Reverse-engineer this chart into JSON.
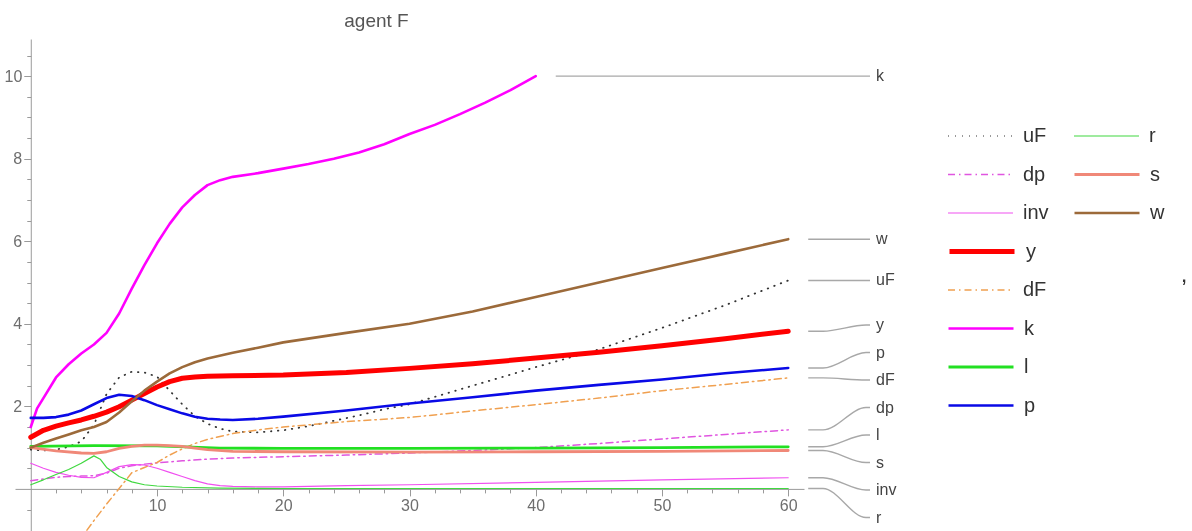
{
  "chart_data": {
    "type": "line",
    "title": "agent F",
    "xlim": [
      -1.25,
      61.25
    ],
    "ylim": [
      -1.02,
      10.9
    ],
    "xticks": [
      {
        "value": 2,
        "label": null
      },
      {
        "value": 4,
        "label": null
      },
      {
        "value": 6,
        "label": null
      },
      {
        "value": 8,
        "label": null
      },
      10,
      {
        "value": 12,
        "label": null
      },
      {
        "value": 14,
        "label": null
      },
      {
        "value": 16,
        "label": null
      },
      {
        "value": 18,
        "label": null
      },
      20,
      {
        "value": 22,
        "label": null
      },
      {
        "value": 24,
        "label": null
      },
      {
        "value": 26,
        "label": null
      },
      {
        "value": 28,
        "label": null
      },
      30,
      {
        "value": 32,
        "label": null
      },
      {
        "value": 34,
        "label": null
      },
      {
        "value": 36,
        "label": null
      },
      {
        "value": 38,
        "label": null
      },
      40,
      {
        "value": 42,
        "label": null
      },
      {
        "value": 44,
        "label": null
      },
      {
        "value": 46,
        "label": null
      },
      {
        "value": 48,
        "label": null
      },
      50,
      {
        "value": 52,
        "label": null
      },
      {
        "value": 54,
        "label": null
      },
      {
        "value": 56,
        "label": null
      },
      {
        "value": 58,
        "label": null
      },
      60
    ],
    "yticks": [
      {
        "value": -0.5,
        "label": null
      },
      {
        "value": 0.5,
        "label": null
      },
      {
        "value": 1,
        "label": null
      },
      {
        "value": 1.5,
        "label": null
      },
      2,
      {
        "value": 2.5,
        "label": null
      },
      {
        "value": 3,
        "label": null
      },
      {
        "value": 3.5,
        "label": null
      },
      4,
      {
        "value": 4.5,
        "label": null
      },
      {
        "value": 5,
        "label": null
      },
      {
        "value": 5.5,
        "label": null
      },
      6,
      {
        "value": 6.5,
        "label": null
      },
      {
        "value": 7,
        "label": null
      },
      {
        "value": 7.5,
        "label": null
      },
      8,
      {
        "value": 8.5,
        "label": null
      },
      {
        "value": 9,
        "label": null
      },
      {
        "value": 9.5,
        "label": null
      },
      10,
      {
        "value": 10.5,
        "label": null
      }
    ],
    "legend": "right",
    "annotations": [
      ","
    ],
    "series": [
      {
        "name": "uF",
        "color": "#333333",
        "line_style": "dotted",
        "x": [
          0,
          1,
          2,
          3,
          4,
          5,
          6,
          7,
          8,
          9,
          10,
          11,
          12,
          13,
          14,
          15,
          16,
          18,
          20,
          22,
          24,
          26,
          28,
          30,
          35,
          40,
          45,
          50,
          55,
          60
        ],
        "values": [
          0.95,
          0.93,
          0.95,
          1.02,
          1.15,
          1.55,
          2.3,
          2.7,
          2.84,
          2.82,
          2.72,
          2.38,
          2.05,
          1.76,
          1.58,
          1.46,
          1.39,
          1.37,
          1.42,
          1.52,
          1.65,
          1.78,
          1.93,
          2.05,
          2.5,
          2.95,
          3.38,
          3.9,
          4.45,
          5.05
        ]
      },
      {
        "name": "dp",
        "color": "#e055e0",
        "line_style": "dashed",
        "x": [
          0,
          1,
          2,
          3,
          4,
          5,
          6,
          7,
          8,
          9,
          10,
          12,
          14,
          16,
          20,
          25,
          30,
          35,
          40,
          45,
          50,
          55,
          60
        ],
        "values": [
          0.2,
          0.24,
          0.28,
          0.3,
          0.31,
          0.32,
          0.38,
          0.5,
          0.56,
          0.6,
          0.63,
          0.68,
          0.72,
          0.75,
          0.78,
          0.82,
          0.87,
          0.93,
          1.0,
          1.1,
          1.21,
          1.32,
          1.43
        ]
      },
      {
        "name": "inv",
        "color": "#f050f0",
        "line_style": "solid",
        "x": [
          0,
          1,
          2,
          3,
          4,
          5,
          6,
          7,
          8,
          9,
          10,
          11,
          12,
          13,
          14,
          15,
          16,
          18,
          20,
          25,
          30,
          40,
          50,
          60
        ],
        "values": [
          0.62,
          0.5,
          0.4,
          0.33,
          0.28,
          0.27,
          0.4,
          0.54,
          0.59,
          0.58,
          0.5,
          0.4,
          0.3,
          0.2,
          0.12,
          0.08,
          0.06,
          0.05,
          0.05,
          0.08,
          0.1,
          0.16,
          0.22,
          0.27
        ]
      },
      {
        "name": "y",
        "color": "#ff0000",
        "line_style": "solid",
        "x": [
          0,
          1,
          2,
          3,
          4,
          5,
          6,
          7,
          8,
          9,
          10,
          11,
          12,
          13,
          14,
          16,
          20,
          25,
          30,
          35,
          40,
          45,
          50,
          55,
          60
        ],
        "values": [
          1.25,
          1.42,
          1.52,
          1.6,
          1.67,
          1.76,
          1.86,
          1.99,
          2.15,
          2.31,
          2.47,
          2.6,
          2.68,
          2.71,
          2.73,
          2.74,
          2.76,
          2.82,
          2.92,
          3.03,
          3.17,
          3.31,
          3.47,
          3.64,
          3.82
        ]
      },
      {
        "name": "dF",
        "color": "#f0a050",
        "line_style": "dashed",
        "x": [
          4.45,
          5,
          6,
          7,
          8,
          9,
          10,
          11,
          12,
          13,
          14,
          16,
          18,
          20,
          25,
          30,
          35,
          40,
          45,
          50,
          55,
          60
        ],
        "values": [
          -1.0,
          -0.77,
          -0.37,
          0.01,
          0.39,
          0.52,
          0.64,
          0.82,
          0.97,
          1.1,
          1.2,
          1.34,
          1.43,
          1.5,
          1.63,
          1.73,
          1.89,
          2.04,
          2.2,
          2.38,
          2.53,
          2.69
        ]
      },
      {
        "name": "k",
        "color": "#ff00ff",
        "line_style": "solid",
        "x": [
          0,
          0.5,
          1,
          2,
          3,
          4,
          5,
          6,
          7,
          8,
          9,
          10,
          11,
          12,
          13,
          14,
          15,
          16,
          18,
          20,
          22,
          24,
          26,
          28,
          30,
          32,
          34,
          36,
          38,
          40
        ],
        "values": [
          1.5,
          1.95,
          2.2,
          2.7,
          3.02,
          3.28,
          3.5,
          3.78,
          4.25,
          4.85,
          5.42,
          5.95,
          6.42,
          6.82,
          7.12,
          7.36,
          7.48,
          7.56,
          7.65,
          7.76,
          7.87,
          8.0,
          8.15,
          8.35,
          8.6,
          8.82,
          9.08,
          9.36,
          9.66,
          10.0
        ]
      },
      {
        "name": "l",
        "color": "#22e022",
        "line_style": "solid",
        "x": [
          0,
          5,
          10,
          15,
          20,
          30,
          40,
          50,
          60
        ],
        "values": [
          1.03,
          1.05,
          1.04,
          0.99,
          0.98,
          0.98,
          0.99,
          1.0,
          1.02
        ]
      },
      {
        "name": "p",
        "color": "#0a0ae6",
        "line_style": "solid",
        "x": [
          0,
          1,
          2,
          3,
          4,
          5,
          6,
          7,
          8,
          9,
          10,
          11,
          12,
          13,
          14,
          15,
          16,
          18,
          20,
          25,
          30,
          35,
          40,
          45,
          50,
          55,
          60
        ],
        "values": [
          1.72,
          1.72,
          1.74,
          1.8,
          1.9,
          2.05,
          2.2,
          2.28,
          2.25,
          2.15,
          2.03,
          1.93,
          1.83,
          1.75,
          1.7,
          1.68,
          1.67,
          1.7,
          1.75,
          1.9,
          2.07,
          2.22,
          2.38,
          2.52,
          2.65,
          2.8,
          2.93
        ]
      },
      {
        "name": "r",
        "color": "#40d840",
        "line_style": "solid",
        "x": [
          0,
          1,
          2,
          3,
          4,
          5,
          5.5,
          6,
          7,
          8,
          9,
          10,
          12,
          15,
          20,
          30,
          40,
          50,
          60
        ],
        "values": [
          0.1,
          0.22,
          0.35,
          0.47,
          0.62,
          0.8,
          0.72,
          0.52,
          0.3,
          0.17,
          0.1,
          0.07,
          0.04,
          0.02,
          0.01,
          0.01,
          0.01,
          0.01,
          0.01
        ]
      },
      {
        "name": "s",
        "color": "#f08878",
        "line_style": "solid",
        "x": [
          0,
          2,
          4,
          5,
          6,
          7,
          8,
          9,
          10,
          11,
          12,
          13,
          14,
          16,
          20,
          30,
          40,
          50,
          60
        ],
        "values": [
          1.0,
          0.92,
          0.87,
          0.86,
          0.9,
          0.98,
          1.03,
          1.06,
          1.06,
          1.05,
          1.03,
          0.99,
          0.95,
          0.91,
          0.9,
          0.89,
          0.9,
          0.91,
          0.93
        ]
      },
      {
        "name": "w",
        "color": "#9c6a3a",
        "line_style": "solid",
        "x": [
          0,
          1,
          2,
          3,
          4,
          5,
          6,
          7,
          8,
          9,
          10,
          11,
          12,
          13,
          14,
          16,
          18,
          20,
          25,
          30,
          35,
          40,
          45,
          50,
          55,
          60
        ],
        "values": [
          1.0,
          1.12,
          1.22,
          1.32,
          1.42,
          1.5,
          1.62,
          1.85,
          2.12,
          2.38,
          2.6,
          2.8,
          2.95,
          3.07,
          3.16,
          3.3,
          3.42,
          3.55,
          3.78,
          4.0,
          4.3,
          4.65,
          5.0,
          5.35,
          5.7,
          6.05
        ]
      }
    ]
  }
}
